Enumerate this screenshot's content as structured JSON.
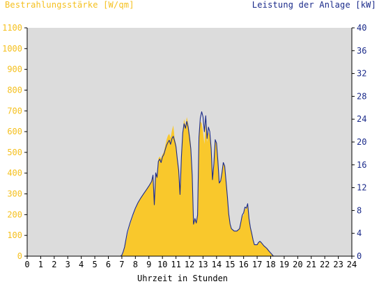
{
  "colors": {
    "irradiance": "#f9c82c",
    "power": "#1a2a8a",
    "plot_background": "#dcdcdc",
    "left_axis_text": "#f5c01e",
    "right_axis_text": "#1a2a8a"
  },
  "chart_data": {
    "type": "area",
    "title": "",
    "ylabel_left": "Bestrahlungsstärke [W/qm]",
    "ylabel_right": "Leistung der Anlage [kW]",
    "xlabel": "Uhrzeit in Stunden",
    "xlim": [
      0,
      24
    ],
    "ylim_left": [
      0,
      1100
    ],
    "ylim_right": [
      0,
      40
    ],
    "x_ticks": [
      "0",
      "1",
      "2",
      "3",
      "4",
      "5",
      "6",
      "7",
      "8",
      "9",
      "10",
      "11",
      "12",
      "13",
      "14",
      "15",
      "16",
      "17",
      "18",
      "19",
      "20",
      "21",
      "22",
      "23",
      "24"
    ],
    "y_left_ticks": [
      "0",
      "100",
      "200",
      "300",
      "400",
      "500",
      "600",
      "700",
      "800",
      "900",
      "1000",
      "1100"
    ],
    "y_right_ticks": [
      "0",
      "4",
      "8",
      "12",
      "16",
      "20",
      "24",
      "28",
      "32",
      "36",
      "40"
    ],
    "grid": false,
    "series": [
      {
        "name": "Bestrahlungsstärke [W/qm]",
        "axis": "left",
        "style": "area",
        "points": [
          [
            0,
            0
          ],
          [
            6.9,
            0
          ],
          [
            7.0,
            5
          ],
          [
            7.1,
            15
          ],
          [
            7.2,
            40
          ],
          [
            7.4,
            100
          ],
          [
            7.6,
            150
          ],
          [
            7.8,
            190
          ],
          [
            8.0,
            225
          ],
          [
            8.2,
            255
          ],
          [
            8.4,
            280
          ],
          [
            8.6,
            300
          ],
          [
            8.8,
            320
          ],
          [
            9.0,
            340
          ],
          [
            9.2,
            360
          ],
          [
            9.3,
            390
          ],
          [
            9.4,
            255
          ],
          [
            9.5,
            400
          ],
          [
            9.6,
            380
          ],
          [
            9.7,
            470
          ],
          [
            9.8,
            480
          ],
          [
            9.9,
            470
          ],
          [
            10.0,
            490
          ],
          [
            10.1,
            500
          ],
          [
            10.2,
            530
          ],
          [
            10.3,
            560
          ],
          [
            10.4,
            580
          ],
          [
            10.5,
            590
          ],
          [
            10.6,
            570
          ],
          [
            10.7,
            605
          ],
          [
            10.8,
            630
          ],
          [
            10.9,
            570
          ],
          [
            11.0,
            540
          ],
          [
            11.1,
            480
          ],
          [
            11.2,
            420
          ],
          [
            11.3,
            300
          ],
          [
            11.4,
            480
          ],
          [
            11.5,
            600
          ],
          [
            11.6,
            660
          ],
          [
            11.7,
            630
          ],
          [
            11.8,
            670
          ],
          [
            11.9,
            640
          ],
          [
            12.0,
            590
          ],
          [
            12.1,
            540
          ],
          [
            12.2,
            400
          ],
          [
            12.3,
            150
          ],
          [
            12.4,
            180
          ],
          [
            12.5,
            160
          ],
          [
            12.6,
            200
          ],
          [
            12.7,
            580
          ],
          [
            12.8,
            650
          ],
          [
            12.9,
            640
          ],
          [
            13.0,
            600
          ],
          [
            13.1,
            540
          ],
          [
            13.2,
            640
          ],
          [
            13.3,
            550
          ],
          [
            13.4,
            600
          ],
          [
            13.5,
            580
          ],
          [
            13.6,
            500
          ],
          [
            13.7,
            370
          ],
          [
            13.8,
            440
          ],
          [
            13.9,
            560
          ],
          [
            14.0,
            540
          ],
          [
            14.1,
            450
          ],
          [
            14.2,
            350
          ],
          [
            14.3,
            360
          ],
          [
            14.4,
            400
          ],
          [
            14.5,
            450
          ],
          [
            14.6,
            430
          ],
          [
            14.7,
            360
          ],
          [
            14.8,
            280
          ],
          [
            14.9,
            200
          ],
          [
            15.0,
            150
          ],
          [
            15.1,
            130
          ],
          [
            15.3,
            120
          ],
          [
            15.5,
            120
          ],
          [
            15.7,
            130
          ],
          [
            15.8,
            160
          ],
          [
            15.9,
            190
          ],
          [
            16.0,
            200
          ],
          [
            16.1,
            230
          ],
          [
            16.2,
            225
          ],
          [
            16.3,
            250
          ],
          [
            16.4,
            180
          ],
          [
            16.5,
            140
          ],
          [
            16.6,
            110
          ],
          [
            16.7,
            80
          ],
          [
            16.8,
            55
          ],
          [
            17.0,
            55
          ],
          [
            17.1,
            65
          ],
          [
            17.2,
            70
          ],
          [
            17.3,
            65
          ],
          [
            17.5,
            50
          ],
          [
            17.7,
            40
          ],
          [
            17.9,
            20
          ],
          [
            18.1,
            5
          ],
          [
            18.2,
            0
          ],
          [
            24,
            0
          ]
        ]
      },
      {
        "name": "Leistung der Anlage [kW]",
        "axis": "right",
        "style": "line",
        "points": [
          [
            0,
            0
          ],
          [
            6.9,
            0
          ],
          [
            7.0,
            0.2
          ],
          [
            7.1,
            0.8
          ],
          [
            7.2,
            1.6
          ],
          [
            7.4,
            4.2
          ],
          [
            7.6,
            5.8
          ],
          [
            7.8,
            7.2
          ],
          [
            8.0,
            8.4
          ],
          [
            8.2,
            9.4
          ],
          [
            8.4,
            10.2
          ],
          [
            8.6,
            10.9
          ],
          [
            8.8,
            11.6
          ],
          [
            9.0,
            12.3
          ],
          [
            9.2,
            13.1
          ],
          [
            9.3,
            14.2
          ],
          [
            9.4,
            9.0
          ],
          [
            9.5,
            14.6
          ],
          [
            9.6,
            13.8
          ],
          [
            9.7,
            16.6
          ],
          [
            9.8,
            17.0
          ],
          [
            9.9,
            16.4
          ],
          [
            10.0,
            17.4
          ],
          [
            10.1,
            17.8
          ],
          [
            10.2,
            18.6
          ],
          [
            10.3,
            19.4
          ],
          [
            10.4,
            19.9
          ],
          [
            10.5,
            20.3
          ],
          [
            10.6,
            19.6
          ],
          [
            10.7,
            20.6
          ],
          [
            10.8,
            21.0
          ],
          [
            10.9,
            20.2
          ],
          [
            11.0,
            19.2
          ],
          [
            11.1,
            17.0
          ],
          [
            11.2,
            15.0
          ],
          [
            11.3,
            10.8
          ],
          [
            11.4,
            17.4
          ],
          [
            11.5,
            21.6
          ],
          [
            11.6,
            23.2
          ],
          [
            11.7,
            22.4
          ],
          [
            11.8,
            23.6
          ],
          [
            11.9,
            22.6
          ],
          [
            12.0,
            20.8
          ],
          [
            12.1,
            18.8
          ],
          [
            12.2,
            14.2
          ],
          [
            12.3,
            5.6
          ],
          [
            12.4,
            6.6
          ],
          [
            12.5,
            5.8
          ],
          [
            12.6,
            7.2
          ],
          [
            12.7,
            20.8
          ],
          [
            12.8,
            24.2
          ],
          [
            12.9,
            25.3
          ],
          [
            13.0,
            24.4
          ],
          [
            13.1,
            21.8
          ],
          [
            13.2,
            24.6
          ],
          [
            13.3,
            20.6
          ],
          [
            13.4,
            22.6
          ],
          [
            13.5,
            21.8
          ],
          [
            13.6,
            18.8
          ],
          [
            13.7,
            13.4
          ],
          [
            13.8,
            16.2
          ],
          [
            13.9,
            20.4
          ],
          [
            14.0,
            19.8
          ],
          [
            14.1,
            16.6
          ],
          [
            14.2,
            12.8
          ],
          [
            14.3,
            13.2
          ],
          [
            14.4,
            14.6
          ],
          [
            14.5,
            16.4
          ],
          [
            14.6,
            15.8
          ],
          [
            14.7,
            13.2
          ],
          [
            14.8,
            10.4
          ],
          [
            14.9,
            7.4
          ],
          [
            15.0,
            5.6
          ],
          [
            15.1,
            4.8
          ],
          [
            15.3,
            4.4
          ],
          [
            15.5,
            4.4
          ],
          [
            15.7,
            4.8
          ],
          [
            15.8,
            6.0
          ],
          [
            15.9,
            7.2
          ],
          [
            16.0,
            7.6
          ],
          [
            16.1,
            8.6
          ],
          [
            16.2,
            8.4
          ],
          [
            16.3,
            9.2
          ],
          [
            16.4,
            6.6
          ],
          [
            16.5,
            5.0
          ],
          [
            16.6,
            4.0
          ],
          [
            16.7,
            2.8
          ],
          [
            16.8,
            2.0
          ],
          [
            17.0,
            2.0
          ],
          [
            17.1,
            2.4
          ],
          [
            17.2,
            2.6
          ],
          [
            17.3,
            2.4
          ],
          [
            17.5,
            1.8
          ],
          [
            17.7,
            1.4
          ],
          [
            17.9,
            0.8
          ],
          [
            18.1,
            0.3
          ],
          [
            18.2,
            0
          ],
          [
            24,
            0
          ]
        ]
      }
    ]
  }
}
